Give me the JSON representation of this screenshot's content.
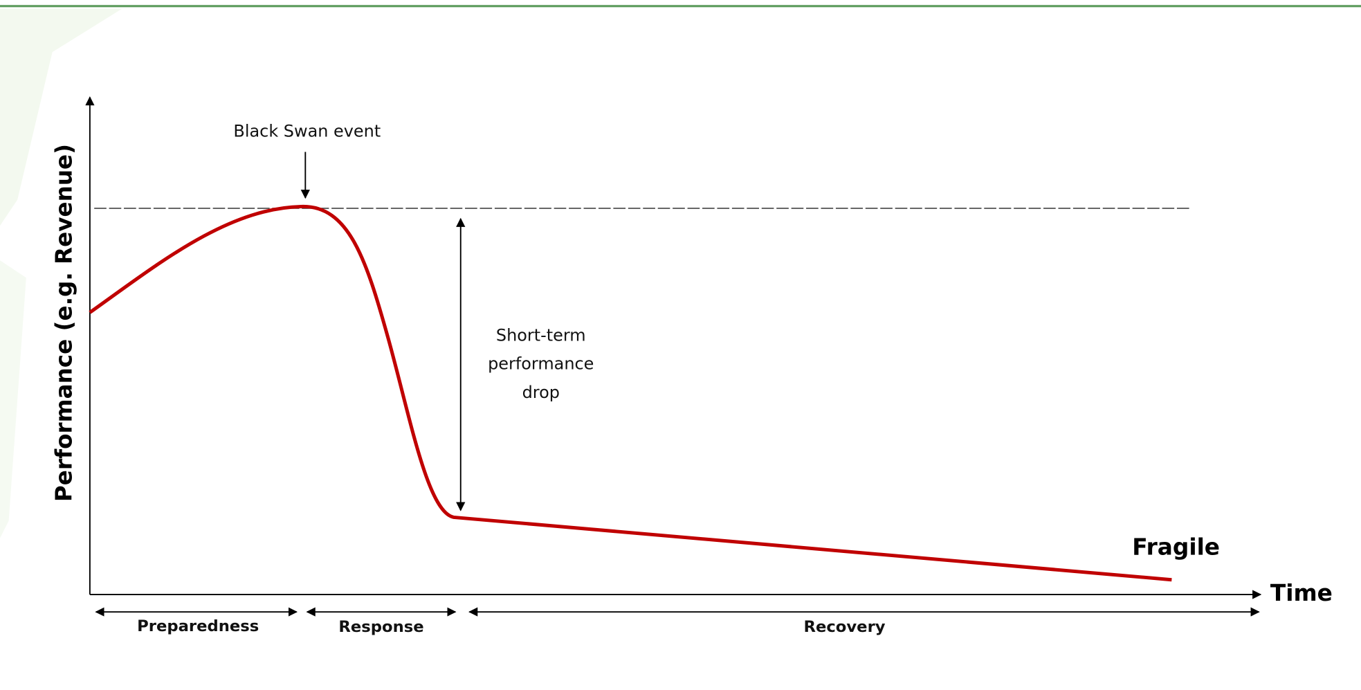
{
  "axes": {
    "y_label": "Performance (e.g. Revenue)",
    "x_label": "Time"
  },
  "annotations": {
    "event": "Black Swan event",
    "drop": [
      "Short-term",
      "performance",
      "drop"
    ],
    "curve_label": "Fragile"
  },
  "phases": [
    "Preparedness",
    "Response",
    "Recovery"
  ]
}
